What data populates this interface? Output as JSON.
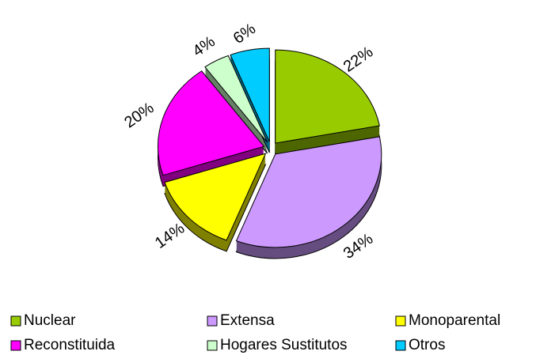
{
  "chart_data": {
    "type": "pie",
    "categories": [
      "Nuclear",
      "Extensa",
      "Monoparental",
      "Reconstituida",
      "Hogares Sustitutos",
      "Otros"
    ],
    "values": [
      22,
      34,
      14,
      20,
      4,
      6
    ],
    "value_labels": [
      "22%",
      "34%",
      "14%",
      "20%",
      "4%",
      "6%"
    ],
    "colors": [
      "#99cc00",
      "#cc99ff",
      "#ffff00",
      "#ff00ff",
      "#ccffcc",
      "#00ccff"
    ],
    "legend": "bottom"
  }
}
